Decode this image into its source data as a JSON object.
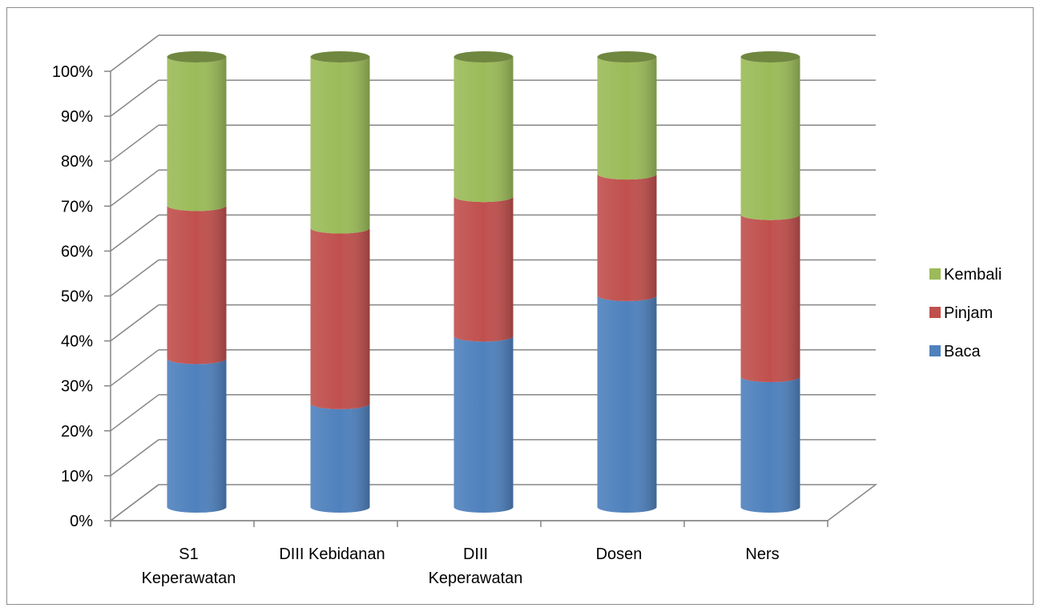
{
  "chart_data": {
    "type": "bar",
    "stacked": true,
    "percent_stacked": true,
    "style": "3d-cylinder",
    "title": "",
    "xlabel": "",
    "ylabel": "",
    "ylim": [
      0,
      100
    ],
    "yticks": [
      "0%",
      "10%",
      "20%",
      "30%",
      "40%",
      "50%",
      "60%",
      "70%",
      "80%",
      "90%",
      "100%"
    ],
    "categories": [
      "S1 Keperawatan",
      "DIII Kebidanan",
      "DIII Keperawatan",
      "Dosen",
      "Ners"
    ],
    "category_lines": [
      [
        "S1",
        "Keperawatan"
      ],
      [
        "DIII Kebidanan"
      ],
      [
        "DIII",
        "Keperawatan"
      ],
      [
        "Dosen"
      ],
      [
        "Ners"
      ]
    ],
    "series": [
      {
        "name": "Baca",
        "values": [
          33,
          23,
          38,
          47,
          29
        ],
        "color": "#4f81bd"
      },
      {
        "name": "Pinjam",
        "values": [
          34,
          39,
          31,
          27,
          36
        ],
        "color": "#c0504d"
      },
      {
        "name": "Kembali",
        "values": [
          33,
          38,
          31,
          26,
          35
        ],
        "color": "#9bbb59"
      }
    ],
    "legend": {
      "position": "right",
      "order": [
        "Kembali",
        "Pinjam",
        "Baca"
      ]
    },
    "grid": true
  }
}
